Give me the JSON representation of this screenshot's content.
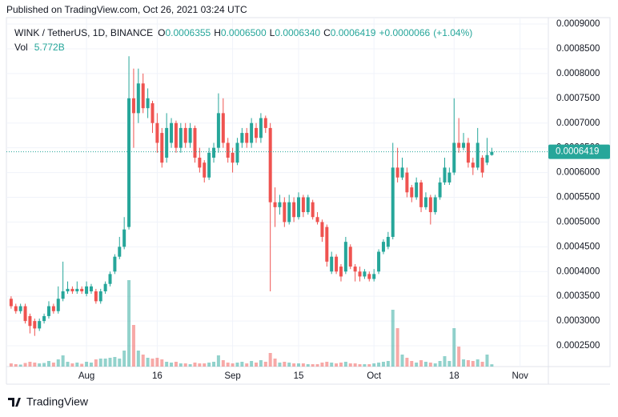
{
  "header": {
    "published": "Published on TradingView.com, Oct 26, 2021 03:24 UTC",
    "symbol": "WINK / TetherUS, 1D, BINANCE",
    "ohlc": [
      {
        "letter": "O",
        "value": 0.0006355,
        "label": "0.0006355"
      },
      {
        "letter": "H",
        "value": 0.00065,
        "label": "0.0006500"
      },
      {
        "letter": "L",
        "value": 0.000634,
        "label": "0.0006340"
      },
      {
        "letter": "C",
        "value": 0.0006419,
        "label": "0.0006419"
      }
    ],
    "change": {
      "value": 6.6e-06,
      "label": "+0.0000066"
    },
    "change_pct": {
      "value": 1.04,
      "label": "(+1.04%)"
    },
    "volume_name": "Vol",
    "volume": {
      "value": 5.772,
      "label": "5.772B"
    }
  },
  "footer": "TradingView",
  "chart_data": {
    "type": "candlestick",
    "up_color": "#26a69a",
    "down_color": "#ef5350",
    "last_price": {
      "value": 0.0006419,
      "label": "0.0006419"
    },
    "xlim": [
      -1,
      114
    ],
    "xticks": [
      {
        "value": 16,
        "label": "Aug"
      },
      {
        "value": 31,
        "label": "16"
      },
      {
        "value": 47,
        "label": "Sep"
      },
      {
        "value": 61,
        "label": "15"
      },
      {
        "value": 77,
        "label": "Oct"
      },
      {
        "value": 94,
        "label": "18"
      },
      {
        "value": 108,
        "label": "Nov"
      }
    ],
    "ylim": [
      0.000208,
      0.000913
    ],
    "yticks": [
      {
        "value": 0.0009,
        "label": "0.0009000"
      },
      {
        "value": 0.00085,
        "label": "0.0008500"
      },
      {
        "value": 0.0008,
        "label": "0.0008000"
      },
      {
        "value": 0.00075,
        "label": "0.0007500"
      },
      {
        "value": 0.0007,
        "label": "0.0007000"
      },
      {
        "value": 0.00065,
        "label": "0.0006500"
      },
      {
        "value": 0.0006,
        "label": "0.0006000"
      },
      {
        "value": 0.00055,
        "label": "0.0005500"
      },
      {
        "value": 0.0005,
        "label": "0.0005000"
      },
      {
        "value": 0.00045,
        "label": "0.0004500"
      },
      {
        "value": 0.0004,
        "label": "0.0004000"
      },
      {
        "value": 0.00035,
        "label": "0.0003500"
      },
      {
        "value": 0.0003,
        "label": "0.0003000"
      },
      {
        "value": 0.00025,
        "label": "0.0002500"
      }
    ],
    "volume_ylim": [
      0,
      230
    ],
    "open": [
      0.000345,
      0.00033,
      0.00032,
      0.00033,
      0.00031,
      0.0003,
      0.000285,
      0.0003,
      0.00031,
      0.00033,
      0.00032,
      0.000345,
      0.00036,
      0.000365,
      0.00036,
      0.000365,
      0.000355,
      0.00036,
      0.00036,
      0.00034,
      0.00036,
      0.000375,
      0.0004,
      0.00043,
      0.00045,
      0.00049,
      0.00075,
      0.00072,
      0.00078,
      0.00073,
      0.00074,
      0.0007,
      0.00068,
      0.00063,
      0.00066,
      0.0007,
      0.00065,
      0.00069,
      0.00066,
      0.00069,
      0.00063,
      0.00062,
      0.00059,
      0.00063,
      0.00065,
      0.00072,
      0.00066,
      0.00064,
      0.00062,
      0.00066,
      0.00068,
      0.00066,
      0.00069,
      0.00067,
      0.00071,
      0.00069,
      0.00054,
      0.00053,
      0.00054,
      0.0005,
      0.00054,
      0.00051,
      0.00055,
      0.00052,
      0.00054,
      0.00051,
      0.0005,
      0.00049,
      0.0004,
      0.00043,
      0.00041,
      0.0004,
      0.00045,
      0.00041,
      0.0004,
      0.00039,
      0.000395,
      0.000385,
      0.0004,
      0.00044,
      0.00045,
      0.00047,
      0.00061,
      0.00059,
      0.0006,
      0.00057,
      0.00055,
      0.00058,
      0.00053,
      0.00055,
      0.00052,
      0.00055,
      0.00058,
      0.00058,
      0.0006,
      0.00066,
      0.00065,
      0.00066,
      0.00062,
      0.00061,
      0.00063,
      0.00062,
      0.0006355
    ],
    "high": [
      0.00035,
      0.000335,
      0.000335,
      0.000335,
      0.000315,
      0.000305,
      0.000305,
      0.000315,
      0.00034,
      0.000335,
      0.00037,
      0.00042,
      0.00038,
      0.00037,
      0.00038,
      0.00037,
      0.00038,
      0.000375,
      0.000365,
      0.000365,
      0.00038,
      0.0004,
      0.000435,
      0.00047,
      0.00051,
      0.000835,
      0.00081,
      0.00081,
      0.0008,
      0.00077,
      0.000745,
      0.00072,
      0.00069,
      0.00072,
      0.00071,
      0.000705,
      0.0007,
      0.0007,
      0.0007,
      0.000695,
      0.00065,
      0.000625,
      0.00065,
      0.00066,
      0.00076,
      0.00075,
      0.00067,
      0.00065,
      0.00067,
      0.00069,
      0.00069,
      0.00071,
      0.0007,
      0.00072,
      0.000715,
      0.0007,
      0.00057,
      0.000555,
      0.00055,
      0.000555,
      0.00055,
      0.00056,
      0.000555,
      0.000555,
      0.000545,
      0.00052,
      0.000505,
      0.000495,
      0.00044,
      0.000435,
      0.000415,
      0.00047,
      0.000455,
      0.000415,
      0.00041,
      0.000405,
      0.0004,
      0.000405,
      0.000445,
      0.000465,
      0.00048,
      0.00066,
      0.00065,
      0.00063,
      0.00061,
      0.000575,
      0.00059,
      0.000585,
      0.00056,
      0.000555,
      0.000555,
      0.00059,
      0.00063,
      0.00061,
      0.00075,
      0.00071,
      0.00068,
      0.00067,
      0.00063,
      0.00069,
      0.000635,
      0.00067,
      0.00065
    ],
    "low": [
      0.000325,
      0.000315,
      0.000315,
      0.000295,
      0.000275,
      0.00027,
      0.00028,
      0.000295,
      0.000305,
      0.000315,
      0.000315,
      0.00034,
      0.000355,
      0.000355,
      0.000355,
      0.000355,
      0.00035,
      0.000355,
      0.000335,
      0.000335,
      0.000355,
      0.00037,
      0.000395,
      0.000425,
      0.000445,
      0.000485,
      0.00065,
      0.0007,
      0.00072,
      0.00071,
      0.00068,
      0.00064,
      0.00061,
      0.00062,
      0.00065,
      0.00064,
      0.00064,
      0.00065,
      0.00065,
      0.00062,
      0.0006,
      0.00058,
      0.000585,
      0.00062,
      0.00064,
      0.00065,
      0.00062,
      0.0006,
      0.000615,
      0.00065,
      0.00065,
      0.00065,
      0.00066,
      0.00066,
      0.00068,
      0.00036,
      0.00049,
      0.000515,
      0.00049,
      0.000495,
      0.0005,
      0.000505,
      0.00051,
      0.000515,
      0.000505,
      0.000495,
      0.00046,
      0.00041,
      0.000395,
      0.000395,
      0.00038,
      0.000395,
      0.000405,
      0.00038,
      0.00038,
      0.000385,
      0.00038,
      0.00038,
      0.000395,
      0.000435,
      0.000445,
      0.000465,
      0.00058,
      0.000585,
      0.00055,
      0.00054,
      0.000545,
      0.00052,
      0.000525,
      0.000495,
      0.000515,
      0.000545,
      0.000575,
      0.000575,
      0.000595,
      0.00064,
      0.000645,
      0.00061,
      0.000595,
      0.000605,
      0.00059,
      0.000615,
      0.000634
    ],
    "close": [
      0.00033,
      0.00032,
      0.00033,
      0.0003,
      0.00029,
      0.000285,
      0.0003,
      0.00031,
      0.00033,
      0.00032,
      0.000345,
      0.00036,
      0.000365,
      0.00036,
      0.000365,
      0.00036,
      0.00037,
      0.00037,
      0.00034,
      0.00036,
      0.000375,
      0.000395,
      0.00043,
      0.00045,
      0.000485,
      0.00075,
      0.00072,
      0.00078,
      0.00073,
      0.00075,
      0.0007,
      0.00066,
      0.00062,
      0.00069,
      0.0007,
      0.00065,
      0.00069,
      0.00066,
      0.00069,
      0.00063,
      0.00061,
      0.00059,
      0.00064,
      0.00065,
      0.00072,
      0.00066,
      0.00063,
      0.00062,
      0.00066,
      0.00068,
      0.00066,
      0.0007,
      0.00067,
      0.00071,
      0.00069,
      0.00054,
      0.00053,
      0.00054,
      0.0005,
      0.00054,
      0.00051,
      0.00055,
      0.00052,
      0.00055,
      0.00051,
      0.0005,
      0.00047,
      0.00042,
      0.00043,
      0.0004,
      0.00039,
      0.00046,
      0.00041,
      0.0004,
      0.00039,
      0.0004,
      0.000385,
      0.000395,
      0.00044,
      0.00046,
      0.00047,
      0.00061,
      0.00059,
      0.00061,
      0.00056,
      0.00055,
      0.00058,
      0.00053,
      0.00055,
      0.00052,
      0.00055,
      0.00058,
      0.00061,
      0.0006,
      0.00066,
      0.00065,
      0.00066,
      0.00062,
      0.00061,
      0.00066,
      0.0006,
      0.0006353,
      0.0006419
    ],
    "volume": [
      8,
      6,
      5,
      9,
      12,
      10,
      8,
      9,
      14,
      10,
      18,
      28,
      12,
      8,
      10,
      7,
      12,
      10,
      18,
      20,
      20,
      22,
      24,
      20,
      40,
      216,
      104,
      40,
      30,
      22,
      20,
      22,
      18,
      12,
      10,
      12,
      8,
      8,
      6,
      10,
      8,
      8,
      10,
      12,
      28,
      16,
      10,
      8,
      10,
      12,
      8,
      14,
      10,
      16,
      12,
      34,
      20,
      10,
      12,
      10,
      8,
      8,
      8,
      6,
      6,
      6,
      10,
      12,
      10,
      8,
      10,
      12,
      8,
      8,
      6,
      6,
      6,
      8,
      10,
      12,
      14,
      142,
      96,
      30,
      22,
      14,
      10,
      16,
      12,
      10,
      8,
      14,
      26,
      14,
      96,
      50,
      18,
      16,
      14,
      18,
      12,
      30,
      5.772
    ]
  }
}
